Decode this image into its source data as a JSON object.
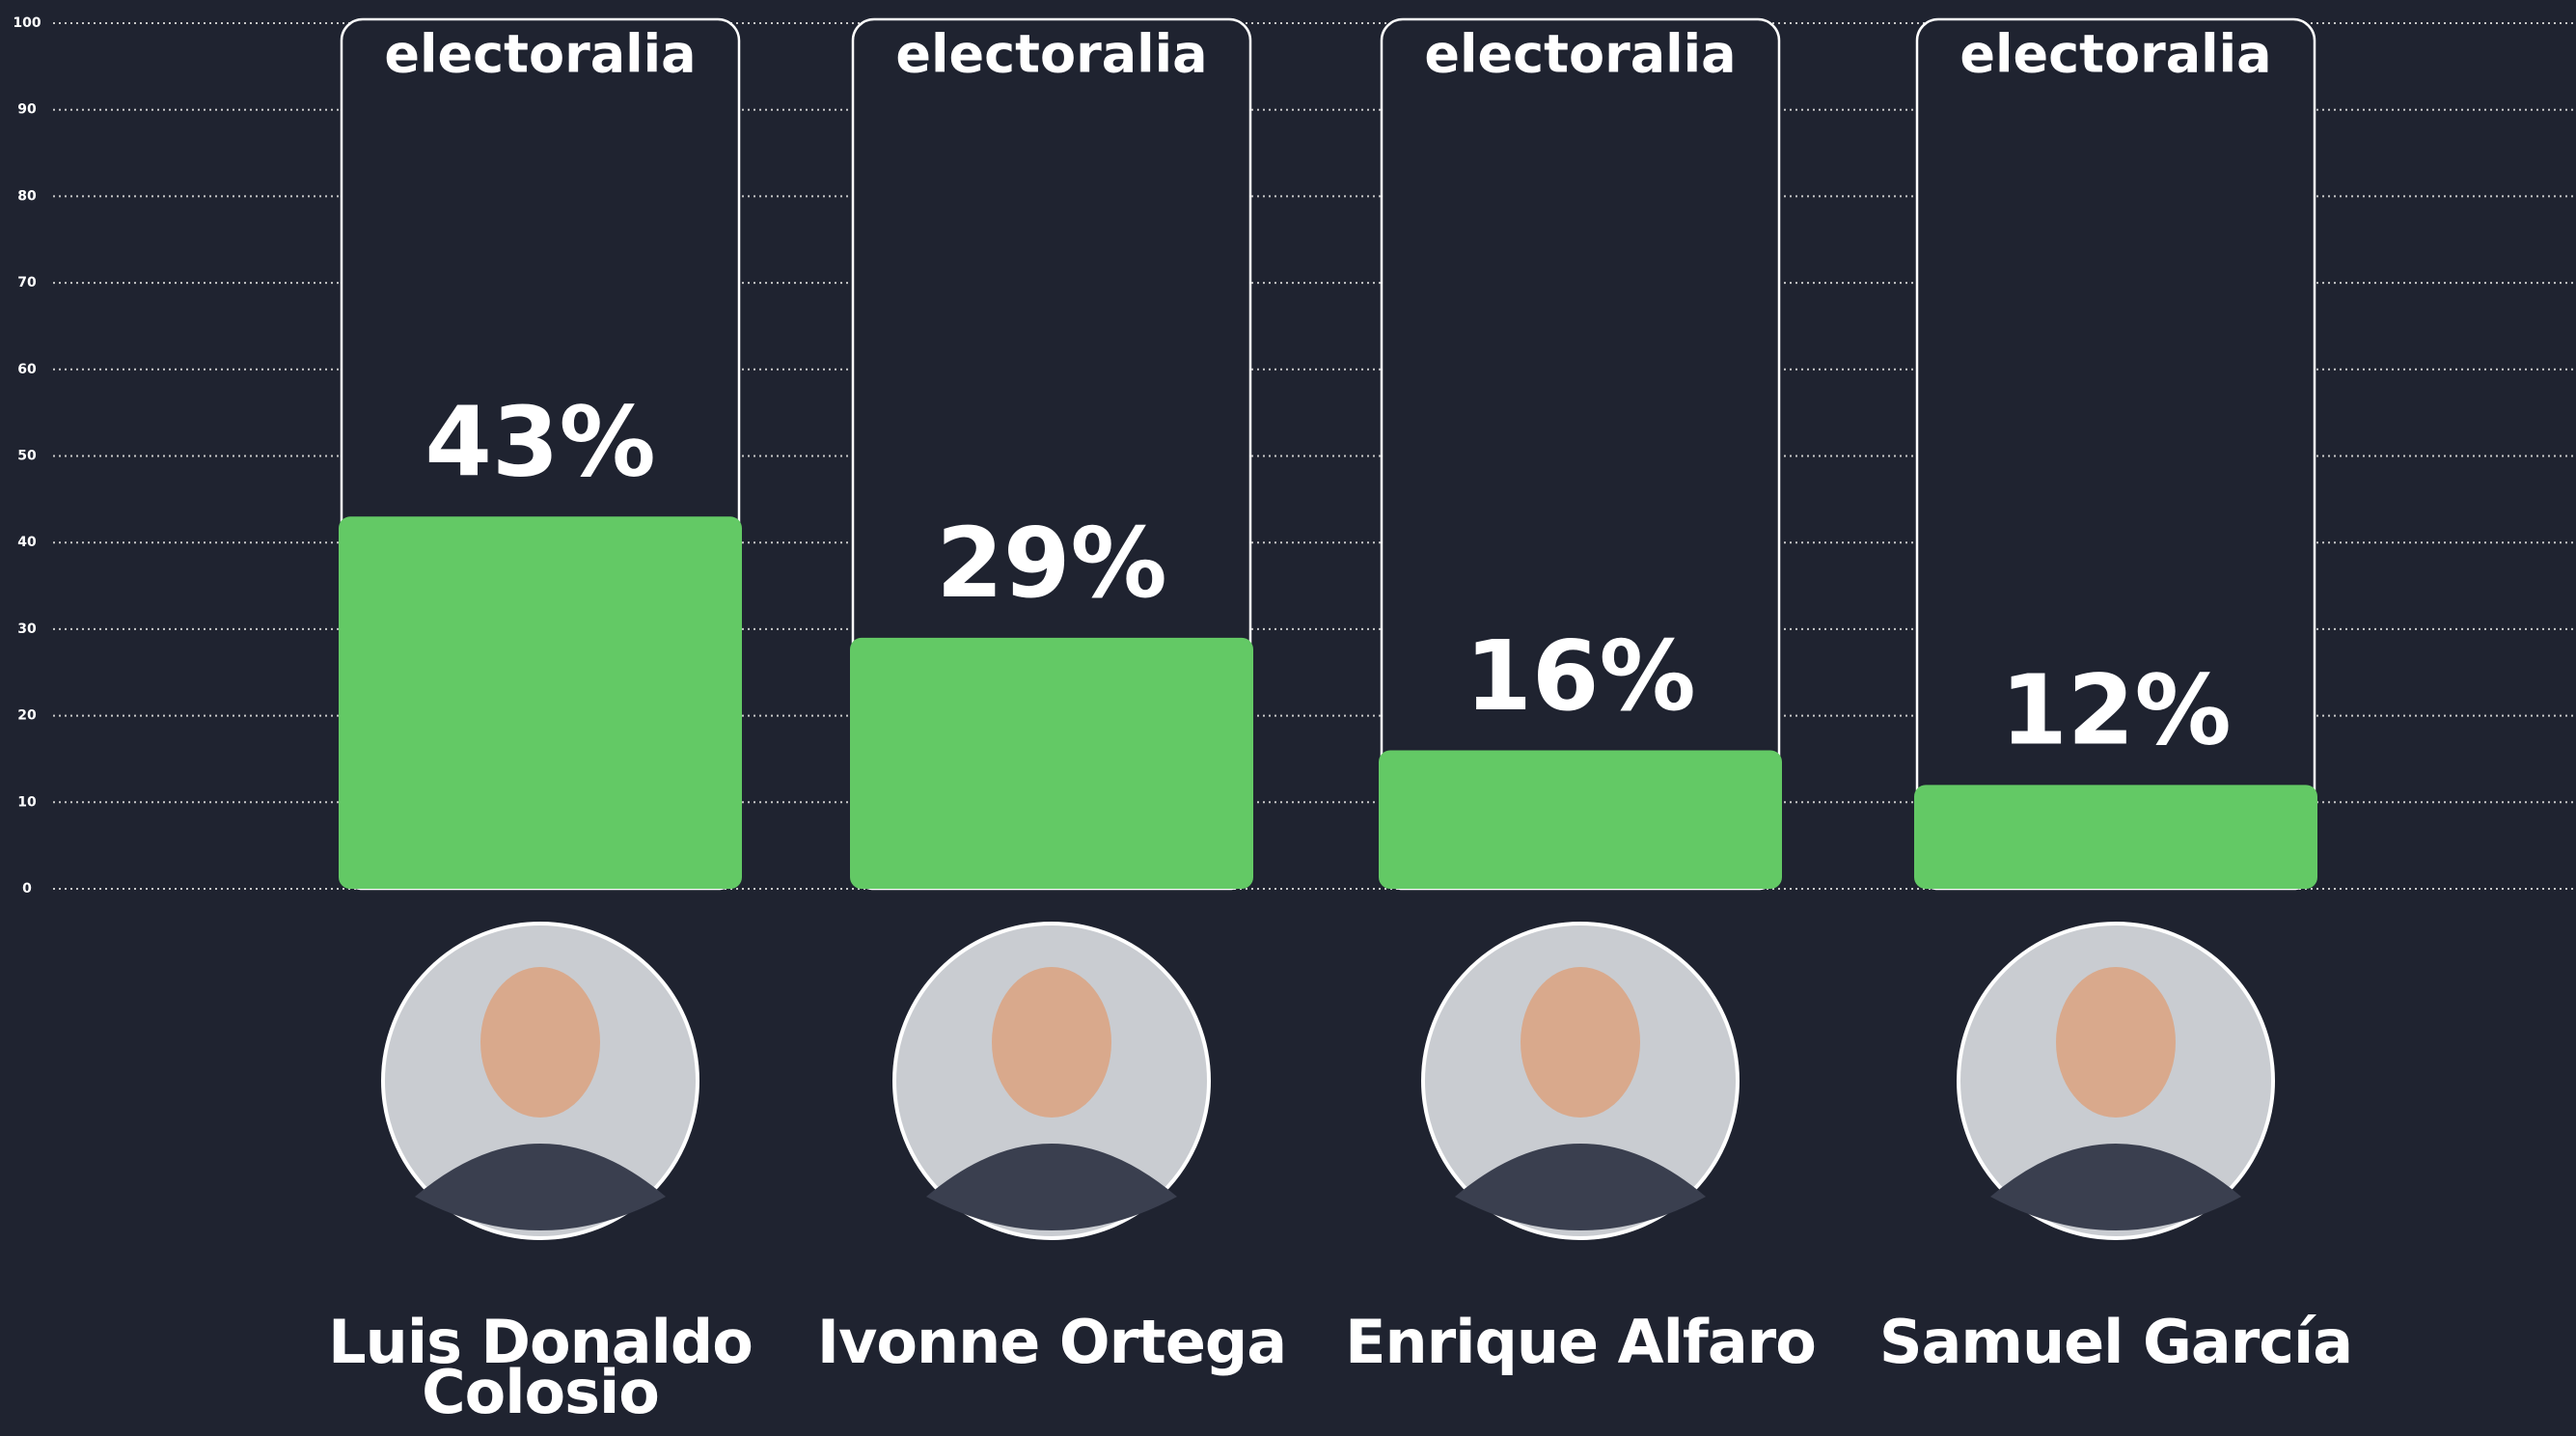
{
  "chart_data": {
    "type": "bar",
    "brand": "electoralia",
    "categories": [
      "Luis Donaldo Colosio",
      "Ivonne Ortega",
      "Enrique Alfaro",
      "Samuel García"
    ],
    "values": [
      43,
      29,
      16,
      12
    ],
    "value_labels": [
      "43%",
      "29%",
      "16%",
      "12%"
    ],
    "color": "#63c965",
    "ylim": [
      0,
      100
    ],
    "yticks": [
      0,
      10,
      20,
      30,
      40,
      50,
      60,
      70,
      80,
      90,
      100
    ],
    "grid": true
  }
}
